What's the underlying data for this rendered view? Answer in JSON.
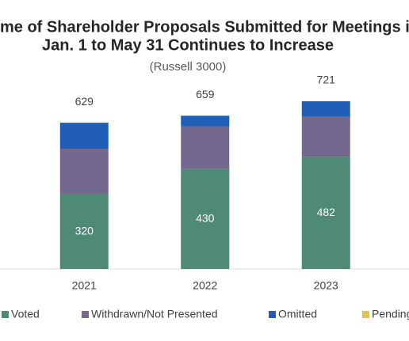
{
  "chart_data": {
    "type": "stacked_bar",
    "title": [
      "me of Shareholder Proposals Submitted for Meetings i",
      "Jan. 1 to May 31 Continues to Increase"
    ],
    "subtitle": "(Russell 3000)",
    "categories": [
      "2021",
      "2022",
      "2023"
    ],
    "series": [
      {
        "name": "Voted",
        "color": "#4e8a77",
        "values": [
          320,
          430,
          482
        ]
      },
      {
        "name": "Withdrawn/Not Presented",
        "color": "#74688f",
        "values": [
          197,
          184,
          173
        ]
      },
      {
        "name": "Omitted",
        "color": "#1f5fb8",
        "values": [
          112,
          45,
          66
        ]
      },
      {
        "name": "Pending",
        "color": "#e8c14a",
        "values": [
          0,
          0,
          0
        ]
      }
    ],
    "totals": [
      629,
      659,
      721
    ],
    "ylim": [
      0,
      1000
    ]
  }
}
